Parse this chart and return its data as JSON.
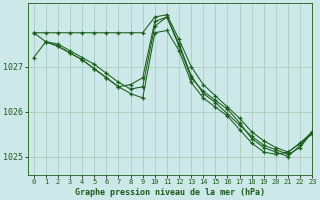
{
  "title": "Graphe pression niveau de la mer (hPa)",
  "bg_color": "#cce8e8",
  "grid_color": "#aaccbb",
  "line_color": "#1a5c1a",
  "xlim": [
    -0.5,
    23
  ],
  "ylim": [
    1024.6,
    1028.4
  ],
  "yticks": [
    1025,
    1026,
    1027
  ],
  "xticks": [
    0,
    1,
    2,
    3,
    4,
    5,
    6,
    7,
    8,
    9,
    10,
    11,
    12,
    13,
    14,
    15,
    16,
    17,
    18,
    19,
    20,
    21,
    22,
    23
  ],
  "series": [
    {
      "x": [
        0,
        1,
        2,
        3,
        4,
        5,
        6,
        7,
        8,
        9,
        10,
        11,
        12,
        13,
        14,
        15,
        16,
        17,
        18,
        19,
        20,
        21,
        22,
        23
      ],
      "y": [
        1027.75,
        1027.75,
        1027.75,
        1027.75,
        1027.75,
        1027.75,
        1027.75,
        1027.75,
        1027.75,
        1027.75,
        1028.1,
        1028.15,
        1027.6,
        1027.0,
        1026.6,
        1026.35,
        1026.1,
        1025.85,
        1025.55,
        1025.35,
        1025.2,
        1025.1,
        1025.3,
        1025.55
      ]
    },
    {
      "x": [
        1,
        2,
        3,
        4,
        5,
        6,
        7,
        8,
        9,
        10,
        11,
        12,
        13,
        14,
        15,
        16,
        17,
        18,
        19,
        20,
        21,
        22,
        23
      ],
      "y": [
        1027.55,
        1027.5,
        1027.35,
        1027.2,
        1027.05,
        1026.85,
        1026.65,
        1026.5,
        1026.55,
        1027.9,
        1028.1,
        1027.5,
        1026.8,
        1026.4,
        1026.2,
        1025.95,
        1025.7,
        1025.45,
        1025.25,
        1025.15,
        1025.05,
        1025.2,
        1025.55
      ]
    },
    {
      "x": [
        0,
        1,
        2,
        3,
        4,
        5,
        6,
        7,
        8,
        9,
        10,
        11,
        12,
        13,
        14,
        15,
        16,
        17,
        18,
        19,
        20,
        21,
        22,
        23
      ],
      "y": [
        1027.2,
        1027.55,
        1027.45,
        1027.3,
        1027.15,
        1026.95,
        1026.75,
        1026.55,
        1026.6,
        1026.75,
        1028.0,
        1028.1,
        1027.45,
        1026.75,
        1026.45,
        1026.25,
        1026.05,
        1025.75,
        1025.4,
        1025.2,
        1025.1,
        1025.0,
        1025.25,
        1025.55
      ]
    },
    {
      "x": [
        0,
        1,
        2,
        3,
        4,
        5,
        6,
        7,
        8,
        9,
        10,
        11,
        12,
        13,
        14,
        15,
        16,
        17,
        18,
        19,
        20,
        21,
        22,
        23
      ],
      "y": [
        1027.75,
        1027.55,
        1027.45,
        1027.3,
        1027.15,
        1026.95,
        1026.75,
        1026.55,
        1026.4,
        1026.3,
        1027.75,
        1027.8,
        1027.35,
        1026.65,
        1026.3,
        1026.1,
        1025.9,
        1025.6,
        1025.3,
        1025.1,
        1025.05,
        1025.1,
        1025.3,
        1025.5
      ]
    }
  ]
}
